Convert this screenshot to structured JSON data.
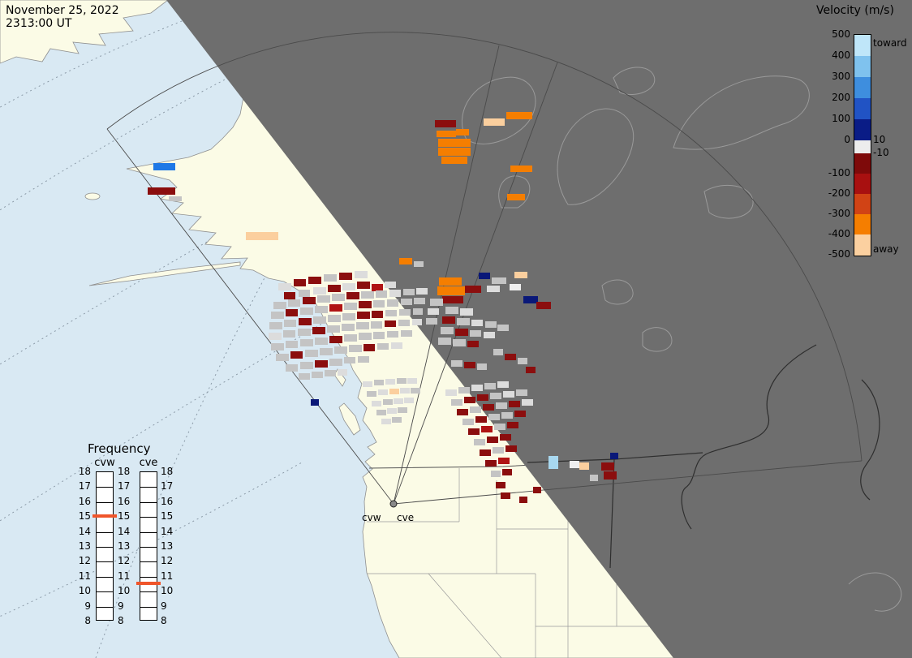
{
  "header": {
    "date": "November 25, 2022",
    "time": "2313:00 UT"
  },
  "colorbar": {
    "title": "Velocity (m/s)",
    "toward": "toward",
    "away": "away",
    "pos_ticks": [
      "500",
      "400",
      "300",
      "200",
      "100",
      "0"
    ],
    "neg_ticks": [
      "-100",
      "-200",
      "-300",
      "-400",
      "-500"
    ],
    "inner_pos": "10",
    "inner_neg": "-10",
    "segments_toward": [
      "#BFE6F9",
      "#7FC2EE",
      "#3E8EDE",
      "#2153C4",
      "#0A1C86"
    ],
    "zero_band": "#EDEDED",
    "segments_away": [
      "#7E0A0A",
      "#A81010",
      "#D14315",
      "#F57E00",
      "#FBD0A0"
    ]
  },
  "frequency": {
    "title": "Frequency",
    "left_radar": "cvw",
    "right_radar": "cve",
    "ticks": [
      "18",
      "17",
      "16",
      "15",
      "14",
      "13",
      "12",
      "11",
      "10",
      "9",
      "8"
    ],
    "markers": {
      "cvw": 15,
      "cve": 10.5
    },
    "marker_color": "#F0552A"
  },
  "site": {
    "left": "cvw",
    "right": "cve"
  },
  "map_colors": {
    "ocean": "#D9E9F3",
    "land": "#FBFBE6",
    "night": "#6E6E6E",
    "coast": "#8F8F8F",
    "night_outline": "#9A9A9A"
  },
  "palette": {
    "dr": "#8B0E0E",
    "rr": "#B01414",
    "or": "#F57E00",
    "lo": "#FBCF9E",
    "nb": "#0A1878",
    "mb": "#1E78E6",
    "lb": "#A8D8F0",
    "gy": "#C4C4C4",
    "lg": "#DCDCDC",
    "wh": "#EFEFEF"
  },
  "cells": [
    [
      536,
      148,
      26,
      9,
      "dr"
    ],
    [
      562,
      159,
      16,
      8,
      "or"
    ],
    [
      596,
      146,
      26,
      9,
      "lo"
    ],
    [
      624,
      138,
      32,
      9,
      "or"
    ],
    [
      538,
      161,
      24,
      8,
      "or"
    ],
    [
      540,
      171,
      40,
      10,
      "or"
    ],
    [
      540,
      182,
      40,
      10,
      "or"
    ],
    [
      544,
      193,
      32,
      9,
      "or"
    ],
    [
      629,
      204,
      27,
      8,
      "or"
    ],
    [
      625,
      239,
      22,
      8,
      "or"
    ],
    [
      189,
      201,
      27,
      9,
      "mb"
    ],
    [
      182,
      231,
      34,
      9,
      "dr"
    ],
    [
      208,
      242,
      16,
      6,
      "gy"
    ],
    [
      303,
      286,
      40,
      10,
      "lo"
    ],
    [
      492,
      318,
      16,
      8,
      "or"
    ],
    [
      510,
      322,
      12,
      7,
      "gy"
    ],
    [
      343,
      349,
      16,
      9,
      "lg"
    ],
    [
      362,
      344,
      15,
      9,
      "dr"
    ],
    [
      380,
      341,
      16,
      9,
      "dr"
    ],
    [
      399,
      338,
      16,
      9,
      "gy"
    ],
    [
      418,
      336,
      16,
      9,
      "dr"
    ],
    [
      437,
      334,
      16,
      9,
      "lg"
    ],
    [
      350,
      360,
      14,
      9,
      "dr"
    ],
    [
      368,
      357,
      14,
      9,
      "gy"
    ],
    [
      386,
      354,
      16,
      9,
      "lg"
    ],
    [
      404,
      351,
      16,
      9,
      "dr"
    ],
    [
      422,
      349,
      16,
      9,
      "lg"
    ],
    [
      440,
      347,
      16,
      9,
      "dr"
    ],
    [
      458,
      350,
      14,
      9,
      "rr"
    ],
    [
      474,
      347,
      14,
      8,
      "lg"
    ],
    [
      541,
      342,
      28,
      10,
      "or"
    ],
    [
      539,
      353,
      34,
      11,
      "or"
    ],
    [
      545,
      365,
      26,
      9,
      "dr"
    ],
    [
      573,
      352,
      20,
      9,
      "dr"
    ],
    [
      590,
      336,
      14,
      8,
      "nb"
    ],
    [
      606,
      342,
      18,
      8,
      "gy"
    ],
    [
      628,
      350,
      14,
      8,
      "wh"
    ],
    [
      634,
      335,
      16,
      8,
      "lo"
    ],
    [
      600,
      352,
      16,
      8,
      "lg"
    ],
    [
      645,
      365,
      18,
      9,
      "nb"
    ],
    [
      661,
      372,
      18,
      9,
      "dr"
    ],
    [
      337,
      372,
      16,
      9,
      "gy"
    ],
    [
      355,
      369,
      15,
      9,
      "gy"
    ],
    [
      373,
      366,
      16,
      9,
      "dr"
    ],
    [
      391,
      364,
      16,
      9,
      "gy"
    ],
    [
      409,
      362,
      16,
      9,
      "gy"
    ],
    [
      427,
      360,
      16,
      9,
      "dr"
    ],
    [
      445,
      359,
      16,
      9,
      "gy"
    ],
    [
      463,
      358,
      14,
      9,
      "gy"
    ],
    [
      480,
      357,
      14,
      9,
      "lg"
    ],
    [
      497,
      356,
      14,
      8,
      "gy"
    ],
    [
      513,
      355,
      14,
      8,
      "lg"
    ],
    [
      530,
      368,
      16,
      9,
      "gy"
    ],
    [
      549,
      378,
      16,
      9,
      "gy"
    ],
    [
      567,
      380,
      16,
      9,
      "lg"
    ],
    [
      334,
      384,
      16,
      9,
      "gy"
    ],
    [
      352,
      381,
      15,
      9,
      "dr"
    ],
    [
      370,
      379,
      16,
      9,
      "gy"
    ],
    [
      388,
      377,
      16,
      9,
      "gy"
    ],
    [
      406,
      375,
      16,
      9,
      "rr"
    ],
    [
      424,
      373,
      16,
      9,
      "gy"
    ],
    [
      442,
      371,
      16,
      9,
      "dr"
    ],
    [
      460,
      370,
      14,
      9,
      "gy"
    ],
    [
      477,
      369,
      14,
      9,
      "gy"
    ],
    [
      494,
      368,
      14,
      8,
      "gy"
    ],
    [
      510,
      367,
      14,
      8,
      "gy"
    ],
    [
      527,
      380,
      14,
      8,
      "lg"
    ],
    [
      545,
      390,
      16,
      9,
      "dr"
    ],
    [
      563,
      392,
      16,
      9,
      "gy"
    ],
    [
      581,
      394,
      14,
      8,
      "lg"
    ],
    [
      598,
      396,
      14,
      8,
      "gy"
    ],
    [
      332,
      397,
      16,
      9,
      "gy"
    ],
    [
      350,
      394,
      15,
      9,
      "gy"
    ],
    [
      368,
      392,
      16,
      9,
      "dr"
    ],
    [
      386,
      390,
      16,
      9,
      "gy"
    ],
    [
      404,
      388,
      16,
      9,
      "gy"
    ],
    [
      422,
      386,
      16,
      9,
      "gy"
    ],
    [
      440,
      384,
      16,
      9,
      "dr"
    ],
    [
      458,
      383,
      14,
      9,
      "dr"
    ],
    [
      475,
      382,
      14,
      8,
      "gy"
    ],
    [
      492,
      381,
      14,
      8,
      "gy"
    ],
    [
      509,
      380,
      12,
      8,
      "gy"
    ],
    [
      525,
      392,
      14,
      8,
      "gy"
    ],
    [
      543,
      403,
      16,
      9,
      "gy"
    ],
    [
      561,
      405,
      16,
      9,
      "dr"
    ],
    [
      579,
      407,
      14,
      8,
      "gy"
    ],
    [
      596,
      409,
      14,
      8,
      "lg"
    ],
    [
      613,
      400,
      14,
      8,
      "gy"
    ],
    [
      331,
      410,
      16,
      9,
      "lg"
    ],
    [
      349,
      407,
      15,
      9,
      "gy"
    ],
    [
      367,
      405,
      16,
      9,
      "gy"
    ],
    [
      385,
      403,
      16,
      9,
      "dr"
    ],
    [
      403,
      401,
      16,
      9,
      "gy"
    ],
    [
      421,
      399,
      16,
      9,
      "gy"
    ],
    [
      439,
      397,
      16,
      9,
      "gy"
    ],
    [
      457,
      396,
      14,
      9,
      "gy"
    ],
    [
      474,
      395,
      14,
      8,
      "dr"
    ],
    [
      491,
      394,
      14,
      8,
      "gy"
    ],
    [
      508,
      393,
      12,
      8,
      "lg"
    ],
    [
      540,
      416,
      16,
      9,
      "gy"
    ],
    [
      558,
      418,
      16,
      9,
      "gy"
    ],
    [
      576,
      420,
      14,
      8,
      "dr"
    ],
    [
      334,
      423,
      16,
      9,
      "gy"
    ],
    [
      352,
      420,
      15,
      9,
      "gy"
    ],
    [
      370,
      418,
      16,
      9,
      "gy"
    ],
    [
      388,
      416,
      16,
      9,
      "gy"
    ],
    [
      406,
      414,
      16,
      9,
      "dr"
    ],
    [
      424,
      412,
      16,
      9,
      "gy"
    ],
    [
      442,
      410,
      16,
      9,
      "gy"
    ],
    [
      460,
      409,
      14,
      9,
      "gy"
    ],
    [
      477,
      408,
      14,
      8,
      "gy"
    ],
    [
      494,
      407,
      14,
      8,
      "gy"
    ],
    [
      340,
      436,
      16,
      9,
      "gy"
    ],
    [
      358,
      433,
      15,
      9,
      "dr"
    ],
    [
      376,
      431,
      16,
      9,
      "gy"
    ],
    [
      394,
      429,
      16,
      9,
      "gy"
    ],
    [
      412,
      427,
      16,
      9,
      "gy"
    ],
    [
      430,
      425,
      16,
      9,
      "gy"
    ],
    [
      448,
      424,
      14,
      9,
      "dr"
    ],
    [
      465,
      423,
      14,
      8,
      "gy"
    ],
    [
      482,
      422,
      14,
      8,
      "lg"
    ],
    [
      352,
      449,
      15,
      9,
      "gy"
    ],
    [
      370,
      446,
      16,
      9,
      "gy"
    ],
    [
      388,
      444,
      16,
      9,
      "dr"
    ],
    [
      406,
      442,
      16,
      9,
      "gy"
    ],
    [
      424,
      440,
      14,
      8,
      "gy"
    ],
    [
      441,
      439,
      14,
      8,
      "gy"
    ],
    [
      368,
      460,
      14,
      8,
      "gy"
    ],
    [
      384,
      458,
      14,
      8,
      "gy"
    ],
    [
      400,
      456,
      14,
      8,
      "gy"
    ],
    [
      416,
      455,
      12,
      8,
      "lg"
    ],
    [
      556,
      444,
      14,
      8,
      "gy"
    ],
    [
      572,
      446,
      14,
      8,
      "dr"
    ],
    [
      588,
      448,
      12,
      8,
      "gy"
    ],
    [
      608,
      430,
      12,
      8,
      "gy"
    ],
    [
      622,
      436,
      14,
      8,
      "dr"
    ],
    [
      638,
      441,
      12,
      8,
      "gy"
    ],
    [
      648,
      452,
      12,
      8,
      "dr"
    ],
    [
      383,
      492,
      10,
      8,
      "nb"
    ],
    [
      447,
      470,
      12,
      7,
      "lg"
    ],
    [
      461,
      468,
      12,
      7,
      "gy"
    ],
    [
      475,
      467,
      12,
      7,
      "lg"
    ],
    [
      489,
      466,
      12,
      7,
      "gy"
    ],
    [
      502,
      466,
      12,
      7,
      "lg"
    ],
    [
      452,
      482,
      12,
      7,
      "gy"
    ],
    [
      466,
      480,
      12,
      7,
      "lg"
    ],
    [
      480,
      479,
      12,
      7,
      "lo"
    ],
    [
      493,
      478,
      12,
      7,
      "lg"
    ],
    [
      506,
      478,
      12,
      7,
      "gy"
    ],
    [
      458,
      494,
      12,
      7,
      "lg"
    ],
    [
      472,
      492,
      12,
      7,
      "gy"
    ],
    [
      485,
      491,
      12,
      7,
      "lg"
    ],
    [
      498,
      490,
      12,
      7,
      "lg"
    ],
    [
      464,
      505,
      12,
      7,
      "gy"
    ],
    [
      477,
      503,
      12,
      7,
      "lg"
    ],
    [
      490,
      502,
      12,
      7,
      "gy"
    ],
    [
      470,
      516,
      12,
      7,
      "lg"
    ],
    [
      483,
      514,
      12,
      7,
      "gy"
    ],
    [
      549,
      480,
      14,
      8,
      "lg"
    ],
    [
      565,
      477,
      14,
      8,
      "gy"
    ],
    [
      581,
      474,
      14,
      8,
      "lg"
    ],
    [
      597,
      472,
      14,
      8,
      "gy"
    ],
    [
      613,
      470,
      14,
      8,
      "lg"
    ],
    [
      556,
      492,
      14,
      8,
      "gy"
    ],
    [
      572,
      489,
      14,
      8,
      "dr"
    ],
    [
      588,
      486,
      14,
      8,
      "dr"
    ],
    [
      604,
      484,
      14,
      8,
      "gy"
    ],
    [
      620,
      482,
      14,
      8,
      "lg"
    ],
    [
      636,
      480,
      14,
      8,
      "gy"
    ],
    [
      563,
      504,
      14,
      8,
      "dr"
    ],
    [
      579,
      501,
      14,
      8,
      "gy"
    ],
    [
      595,
      498,
      14,
      8,
      "dr"
    ],
    [
      611,
      496,
      14,
      8,
      "gy"
    ],
    [
      627,
      494,
      14,
      8,
      "dr"
    ],
    [
      643,
      492,
      14,
      8,
      "lg"
    ],
    [
      570,
      516,
      14,
      8,
      "gy"
    ],
    [
      586,
      513,
      14,
      8,
      "dr"
    ],
    [
      602,
      510,
      14,
      8,
      "gy"
    ],
    [
      618,
      508,
      14,
      8,
      "gy"
    ],
    [
      634,
      506,
      14,
      8,
      "dr"
    ],
    [
      577,
      528,
      14,
      8,
      "dr"
    ],
    [
      593,
      525,
      14,
      8,
      "rr"
    ],
    [
      609,
      522,
      14,
      8,
      "gy"
    ],
    [
      625,
      520,
      14,
      8,
      "dr"
    ],
    [
      584,
      541,
      14,
      8,
      "gy"
    ],
    [
      600,
      538,
      14,
      8,
      "dr"
    ],
    [
      616,
      535,
      14,
      8,
      "dr"
    ],
    [
      591,
      554,
      14,
      8,
      "dr"
    ],
    [
      607,
      551,
      14,
      8,
      "gy"
    ],
    [
      623,
      549,
      14,
      8,
      "dr"
    ],
    [
      598,
      567,
      14,
      8,
      "dr"
    ],
    [
      614,
      564,
      14,
      8,
      "rr"
    ],
    [
      605,
      580,
      12,
      8,
      "gy"
    ],
    [
      619,
      578,
      12,
      8,
      "dr"
    ],
    [
      611,
      594,
      12,
      8,
      "dr"
    ],
    [
      617,
      607,
      12,
      8,
      "dr"
    ],
    [
      640,
      612,
      10,
      8,
      "dr"
    ],
    [
      657,
      600,
      10,
      8,
      "dr"
    ],
    [
      676,
      562,
      12,
      16,
      "lb"
    ],
    [
      702,
      568,
      12,
      9,
      "wh"
    ],
    [
      714,
      570,
      12,
      9,
      "lo"
    ],
    [
      741,
      570,
      16,
      10,
      "dr"
    ],
    [
      744,
      581,
      16,
      10,
      "dr"
    ],
    [
      752,
      558,
      10,
      8,
      "nb"
    ],
    [
      727,
      585,
      10,
      8,
      "gy"
    ]
  ]
}
